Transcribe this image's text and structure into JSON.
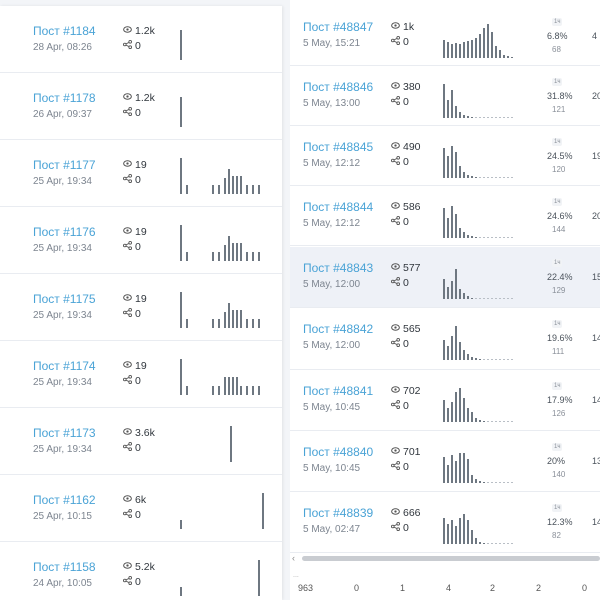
{
  "left_posts": [
    {
      "title": "Пост #1184",
      "date": "28 Apr, 08:26",
      "views": "1.2k",
      "shares": "0",
      "bars": [
        0,
        0,
        0,
        0,
        0,
        0,
        0,
        0,
        0,
        0,
        0,
        0,
        0,
        0,
        0,
        0,
        0,
        0,
        0,
        0,
        0,
        0,
        0,
        0,
        0,
        0,
        0,
        0,
        0,
        0,
        0,
        0,
        0,
        0,
        0,
        0,
        0,
        0,
        0,
        30,
        0,
        0,
        0,
        0,
        0,
        0,
        0,
        0,
        0,
        0,
        0,
        0,
        0,
        0,
        0,
        0,
        0,
        0,
        0,
        0,
        0,
        0,
        0,
        0,
        0,
        0,
        0,
        0,
        0,
        0,
        0,
        0,
        0,
        0,
        0
      ]
    },
    {
      "title": "Пост #1178",
      "date": "26 Apr, 09:37",
      "views": "1.2k",
      "shares": "0",
      "bars": []
    },
    {
      "title": "Пост #1177",
      "date": "25 Apr, 19:34",
      "views": "19",
      "shares": "0",
      "bars": []
    },
    {
      "title": "Пост #1176",
      "date": "25 Apr, 19:34",
      "views": "19",
      "shares": "0",
      "bars": []
    },
    {
      "title": "Пост #1175",
      "date": "25 Apr, 19:34",
      "views": "19",
      "shares": "0",
      "bars": []
    },
    {
      "title": "Пост #1174",
      "date": "25 Apr, 19:34",
      "views": "19",
      "shares": "0",
      "bars": []
    },
    {
      "title": "Пост #1173",
      "date": "25 Apr, 19:34",
      "views": "3.6k",
      "shares": "0",
      "bars": []
    },
    {
      "title": "Пост #1162",
      "date": "25 Apr, 10:15",
      "views": "6k",
      "shares": "0",
      "bars": []
    },
    {
      "title": "Пост #1158",
      "date": "24 Apr, 10:05",
      "views": "5.2k",
      "shares": "0",
      "bars": []
    }
  ],
  "left_sparks": [
    [
      [
        0,
        30
      ]
    ],
    [
      [
        0,
        30
      ]
    ],
    [
      [
        0,
        36
      ],
      [
        6,
        9
      ],
      [
        32,
        9
      ],
      [
        38,
        9
      ],
      [
        44,
        16
      ],
      [
        48,
        25
      ],
      [
        52,
        18
      ],
      [
        56,
        18
      ],
      [
        60,
        18
      ],
      [
        66,
        9
      ],
      [
        72,
        9
      ],
      [
        78,
        9
      ]
    ],
    [
      [
        0,
        36
      ],
      [
        6,
        9
      ],
      [
        32,
        9
      ],
      [
        38,
        9
      ],
      [
        44,
        16
      ],
      [
        48,
        25
      ],
      [
        52,
        18
      ],
      [
        56,
        18
      ],
      [
        60,
        18
      ],
      [
        66,
        9
      ],
      [
        72,
        9
      ],
      [
        78,
        9
      ]
    ],
    [
      [
        0,
        36
      ],
      [
        6,
        9
      ],
      [
        32,
        9
      ],
      [
        38,
        9
      ],
      [
        44,
        16
      ],
      [
        48,
        25
      ],
      [
        52,
        18
      ],
      [
        56,
        18
      ],
      [
        60,
        18
      ],
      [
        66,
        9
      ],
      [
        72,
        9
      ],
      [
        78,
        9
      ]
    ],
    [
      [
        0,
        36
      ],
      [
        6,
        9
      ],
      [
        32,
        9
      ],
      [
        38,
        9
      ],
      [
        44,
        18
      ],
      [
        48,
        18
      ],
      [
        52,
        18
      ],
      [
        56,
        18
      ],
      [
        60,
        9
      ],
      [
        66,
        9
      ],
      [
        72,
        9
      ],
      [
        78,
        9
      ]
    ],
    [
      [
        50,
        36
      ]
    ],
    [
      [
        0,
        9
      ],
      [
        82,
        36
      ]
    ],
    [
      [
        0,
        9
      ],
      [
        78,
        36
      ]
    ]
  ],
  "right_posts": [
    {
      "title": "Пост #48847",
      "date": "5 May, 15:21",
      "views": "1k",
      "shares": "0",
      "badge": "1ч",
      "pct": "6.8%",
      "count": "68",
      "frag": "4"
    },
    {
      "title": "Пост #48846",
      "date": "5 May, 13:00",
      "views": "380",
      "shares": "0",
      "badge": "1ч",
      "pct": "31.8%",
      "count": "121",
      "frag": "20"
    },
    {
      "title": "Пост #48845",
      "date": "5 May, 12:12",
      "views": "490",
      "shares": "0",
      "badge": "1ч",
      "pct": "24.5%",
      "count": "120",
      "frag": "19"
    },
    {
      "title": "Пост #48844",
      "date": "5 May, 12:12",
      "views": "586",
      "shares": "0",
      "badge": "1ч",
      "pct": "24.6%",
      "count": "144",
      "frag": "20"
    },
    {
      "title": "Пост #48843",
      "date": "5 May, 12:00",
      "views": "577",
      "shares": "0",
      "badge": "1ч",
      "pct": "22.4%",
      "count": "129",
      "frag": "15"
    },
    {
      "title": "Пост #48842",
      "date": "5 May, 12:00",
      "views": "565",
      "shares": "0",
      "badge": "1ч",
      "pct": "19.6%",
      "count": "111",
      "frag": "14"
    },
    {
      "title": "Пост #48841",
      "date": "5 May, 10:45",
      "views": "702",
      "shares": "0",
      "badge": "1ч",
      "pct": "17.9%",
      "count": "126",
      "frag": "14"
    },
    {
      "title": "Пост #48840",
      "date": "5 May, 10:45",
      "views": "701",
      "shares": "0",
      "badge": "1ч",
      "pct": "20%",
      "count": "140",
      "frag": "13"
    },
    {
      "title": "Пост #48839",
      "date": "5 May, 02:47",
      "views": "666",
      "shares": "0",
      "badge": "1ч",
      "pct": "12.3%",
      "count": "82",
      "frag": "14"
    }
  ],
  "right_sparks": [
    [
      18,
      16,
      14,
      15,
      14,
      16,
      17,
      18,
      20,
      24,
      30,
      34,
      26,
      12,
      8,
      3,
      2,
      1
    ],
    [
      34,
      18,
      28,
      12,
      6,
      3,
      2,
      1,
      0,
      0,
      0,
      0,
      0,
      0,
      0,
      0,
      0,
      0
    ],
    [
      30,
      22,
      32,
      26,
      12,
      6,
      3,
      2,
      1,
      0,
      0,
      0,
      0,
      0,
      0,
      0,
      0,
      0
    ],
    [
      30,
      20,
      32,
      24,
      10,
      6,
      3,
      2,
      1,
      0,
      0,
      0,
      0,
      0,
      0,
      0,
      0,
      0
    ],
    [
      20,
      12,
      18,
      30,
      10,
      6,
      3,
      1,
      0,
      0,
      0,
      0,
      0,
      0,
      0,
      0,
      0,
      0
    ],
    [
      20,
      14,
      24,
      34,
      18,
      10,
      6,
      3,
      2,
      1,
      0,
      0,
      0,
      0,
      0,
      0,
      0,
      0
    ],
    [
      22,
      14,
      20,
      30,
      34,
      24,
      14,
      10,
      4,
      2,
      1,
      0,
      0,
      0,
      0,
      0,
      0,
      0
    ],
    [
      26,
      18,
      28,
      22,
      30,
      30,
      24,
      8,
      4,
      2,
      1,
      0,
      0,
      0,
      0,
      0,
      0,
      0
    ],
    [
      26,
      20,
      24,
      18,
      26,
      30,
      24,
      14,
      6,
      2,
      1,
      0,
      0,
      0,
      0,
      0,
      0,
      0
    ]
  ],
  "scroll": {
    "left_arrow": "‹"
  },
  "footer": {
    "label": "...",
    "numbers": [
      "963",
      "0",
      "1",
      "4",
      "2",
      "2",
      "0"
    ]
  },
  "icons": {
    "views": "eye-icon",
    "shares": "share-icon"
  },
  "colors": {
    "accent": "#4aa3d6",
    "bar": "#6e7781",
    "selected_row": "#eef1f7"
  }
}
